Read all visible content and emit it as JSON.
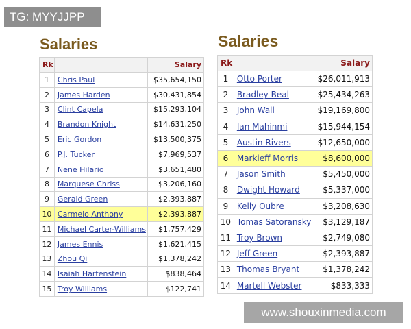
{
  "watermark_top": "TG: MYYJJPP",
  "watermark_bottom": "www.shouxinmedia.com",
  "colors": {
    "heading": "#7a5a1e",
    "header_text": "#8b1a1a",
    "link": "#2a3fa0",
    "highlight": "#ffff99"
  },
  "left": {
    "title": "Salaries",
    "headers": {
      "rank": "Rk",
      "salary": "Salary"
    },
    "highlight_rank": "10",
    "rows": [
      {
        "rk": "1",
        "player": "Chris Paul",
        "salary": "$35,654,150"
      },
      {
        "rk": "2",
        "player": "James Harden",
        "salary": "$30,431,854"
      },
      {
        "rk": "3",
        "player": "Clint Capela",
        "salary": "$15,293,104"
      },
      {
        "rk": "4",
        "player": "Brandon Knight",
        "salary": "$14,631,250"
      },
      {
        "rk": "5",
        "player": "Eric Gordon",
        "salary": "$13,500,375"
      },
      {
        "rk": "6",
        "player": "P.J. Tucker",
        "salary": "$7,969,537"
      },
      {
        "rk": "7",
        "player": "Nene Hilario",
        "salary": "$3,651,480"
      },
      {
        "rk": "8",
        "player": "Marquese Chriss",
        "salary": "$3,206,160"
      },
      {
        "rk": "9",
        "player": "Gerald Green",
        "salary": "$2,393,887"
      },
      {
        "rk": "10",
        "player": "Carmelo Anthony",
        "salary": "$2,393,887"
      },
      {
        "rk": "11",
        "player": "Michael Carter-Williams",
        "salary": "$1,757,429"
      },
      {
        "rk": "12",
        "player": "James Ennis",
        "salary": "$1,621,415"
      },
      {
        "rk": "13",
        "player": "Zhou Qi",
        "salary": "$1,378,242"
      },
      {
        "rk": "14",
        "player": "Isaiah Hartenstein",
        "salary": "$838,464"
      },
      {
        "rk": "15",
        "player": "Troy Williams",
        "salary": "$122,741"
      }
    ]
  },
  "right": {
    "title": "Salaries",
    "headers": {
      "rank": "Rk",
      "salary": "Salary"
    },
    "highlight_rank": "6",
    "rows": [
      {
        "rk": "1",
        "player": "Otto Porter",
        "salary": "$26,011,913"
      },
      {
        "rk": "2",
        "player": "Bradley Beal",
        "salary": "$25,434,263"
      },
      {
        "rk": "3",
        "player": "John Wall",
        "salary": "$19,169,800"
      },
      {
        "rk": "4",
        "player": "Ian Mahinmi",
        "salary": "$15,944,154"
      },
      {
        "rk": "5",
        "player": "Austin Rivers",
        "salary": "$12,650,000"
      },
      {
        "rk": "6",
        "player": "Markieff Morris",
        "salary": "$8,600,000"
      },
      {
        "rk": "7",
        "player": "Jason Smith",
        "salary": "$5,450,000"
      },
      {
        "rk": "8",
        "player": "Dwight Howard",
        "salary": "$5,337,000"
      },
      {
        "rk": "9",
        "player": "Kelly Oubre",
        "salary": "$3,208,630"
      },
      {
        "rk": "10",
        "player": "Tomas Satoransky",
        "salary": "$3,129,187"
      },
      {
        "rk": "11",
        "player": "Troy Brown",
        "salary": "$2,749,080"
      },
      {
        "rk": "12",
        "player": "Jeff Green",
        "salary": "$2,393,887"
      },
      {
        "rk": "13",
        "player": "Thomas Bryant",
        "salary": "$1,378,242"
      },
      {
        "rk": "14",
        "player": "Martell Webster",
        "salary": "$833,333"
      }
    ]
  }
}
